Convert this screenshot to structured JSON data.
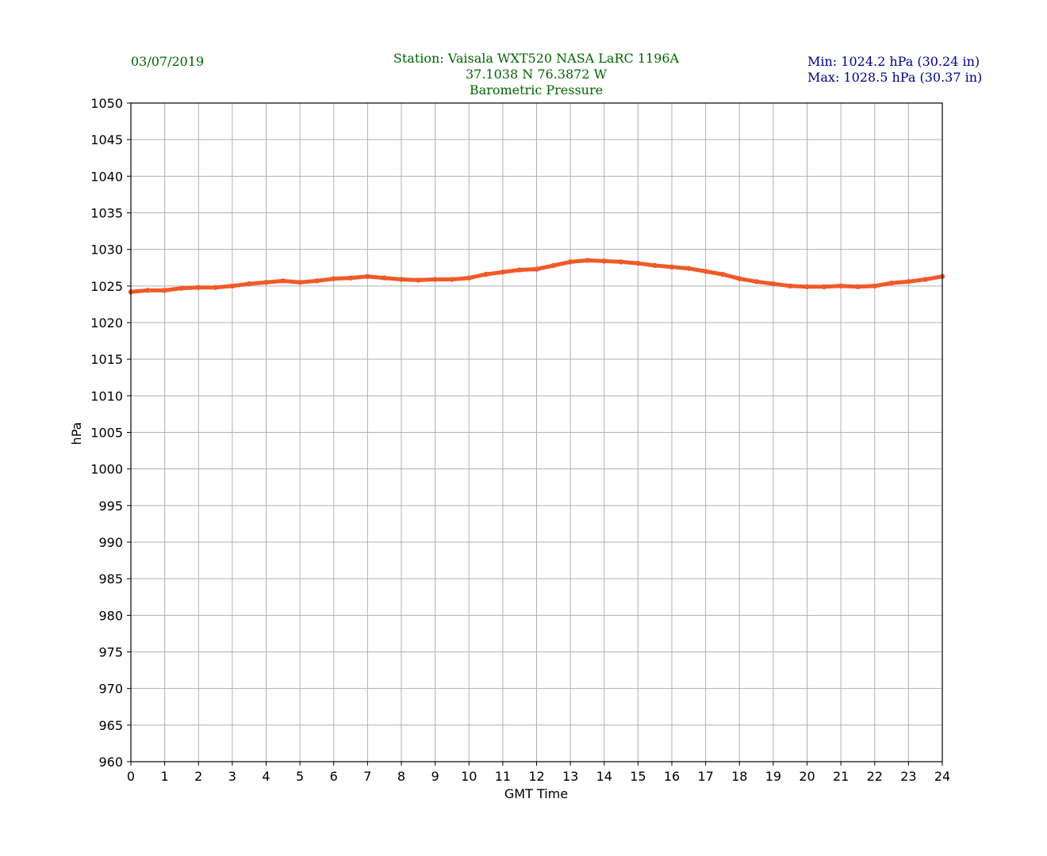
{
  "header": {
    "date": "03/07/2019",
    "station_line": "Station:  Vaisala WXT520  NASA LaRC 1196A",
    "coords_line": "37.1038 N 76.3872 W",
    "variable_line": "Barometric Pressure",
    "min_line": "Min: 1024.2 hPa (30.24 in)",
    "max_line": "Max: 1028.5 hPa (30.37 in)"
  },
  "colors": {
    "series": "#f05a28",
    "grid": "#b0b0b0",
    "header_green": "#006400",
    "header_blue": "#00008b"
  },
  "chart_data": {
    "type": "line",
    "xlabel": "GMT Time",
    "ylabel": "hPa",
    "xlim": [
      0,
      24
    ],
    "ylim": [
      960,
      1050
    ],
    "xticks": [
      0,
      1,
      2,
      3,
      4,
      5,
      6,
      7,
      8,
      9,
      10,
      11,
      12,
      13,
      14,
      15,
      16,
      17,
      18,
      19,
      20,
      21,
      22,
      23,
      24
    ],
    "yticks": [
      960,
      965,
      970,
      975,
      980,
      985,
      990,
      995,
      1000,
      1005,
      1010,
      1015,
      1020,
      1025,
      1030,
      1035,
      1040,
      1045,
      1050
    ],
    "grid": true,
    "series": [
      {
        "x": [
          0,
          0.5,
          1,
          1.5,
          2,
          2.5,
          3,
          3.5,
          4,
          4.5,
          5,
          5.5,
          6,
          6.5,
          7,
          7.5,
          8,
          8.5,
          9,
          9.5,
          10,
          10.5,
          11,
          11.5,
          12,
          12.5,
          13,
          13.5,
          14,
          14.5,
          15,
          15.5,
          16,
          16.5,
          17,
          17.5,
          18,
          18.5,
          19,
          19.5,
          20,
          20.5,
          21,
          21.5,
          22,
          22.5,
          23,
          23.5,
          24
        ],
        "y": [
          1024.2,
          1024.4,
          1024.4,
          1024.7,
          1024.8,
          1024.8,
          1025.0,
          1025.3,
          1025.5,
          1025.7,
          1025.5,
          1025.7,
          1026.0,
          1026.1,
          1026.3,
          1026.1,
          1025.9,
          1025.8,
          1025.9,
          1025.9,
          1026.1,
          1026.6,
          1026.9,
          1027.2,
          1027.3,
          1027.8,
          1028.3,
          1028.5,
          1028.4,
          1028.3,
          1028.1,
          1027.8,
          1027.6,
          1027.4,
          1027.0,
          1026.6,
          1026.0,
          1025.6,
          1025.3,
          1025.0,
          1024.9,
          1024.9,
          1025.0,
          1024.9,
          1025.0,
          1025.4,
          1025.6,
          1025.9,
          1026.3
        ]
      }
    ]
  }
}
